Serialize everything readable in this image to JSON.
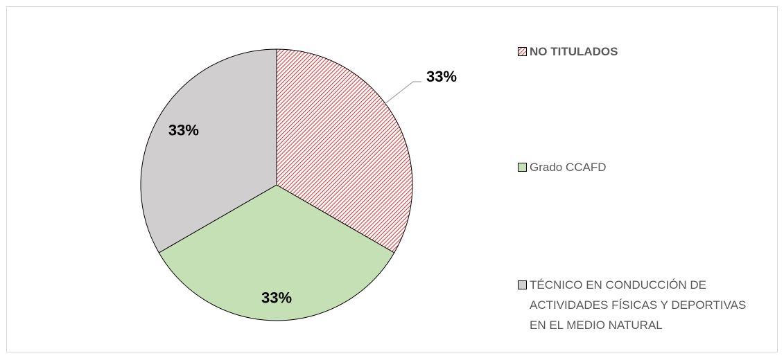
{
  "chart_data": {
    "type": "pie",
    "categories": [
      "NO TITULADOS",
      "Grado CCAFD",
      "TÉCNICO EN CONDUCCIÓN DE ACTIVIDADES FÍSICAS Y DEPORTIVAS EN EL MEDIO NATURAL"
    ],
    "values": [
      33,
      33,
      33
    ],
    "value_labels": [
      "33%",
      "33%",
      "33%"
    ],
    "colors": [
      "#e03a3a",
      "#c5e0b4",
      "#d0cece"
    ],
    "hatch": [
      true,
      false,
      false
    ],
    "legend": "right"
  }
}
